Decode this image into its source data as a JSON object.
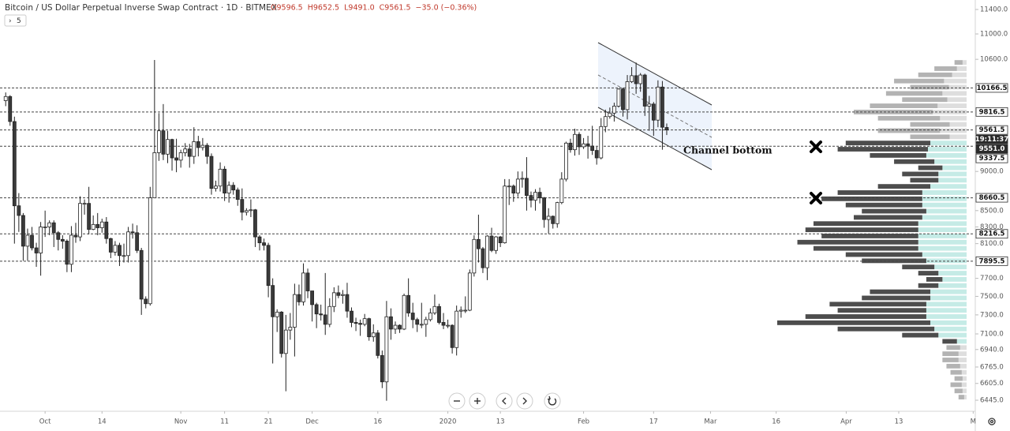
{
  "header": {
    "title": "Bitcoin / US Dollar Perpetual Inverse Swap Contract · 1D · BITMEX",
    "ohlc": [
      "O9596.5",
      "H9652.5",
      "L9491.0",
      "C9561.5",
      "−35.0 (−0.36%)"
    ],
    "indicator_toggle": "5"
  },
  "chart_data": {
    "type": "candlestick",
    "candles": [
      [
        9980,
        10100,
        9900,
        10040
      ],
      [
        10040,
        10060,
        9620,
        9680
      ],
      [
        9680,
        9750,
        8100,
        8560
      ],
      [
        8560,
        8720,
        8240,
        8440
      ],
      [
        8440,
        8470,
        7900,
        8070
      ],
      [
        8070,
        8280,
        7900,
        8200
      ],
      [
        8200,
        8300,
        8020,
        8050
      ],
      [
        8050,
        8110,
        7830,
        7990
      ],
      [
        7990,
        8360,
        7730,
        8300
      ],
      [
        8300,
        8500,
        8180,
        8300
      ],
      [
        8300,
        8380,
        8200,
        8350
      ],
      [
        8350,
        8380,
        8060,
        8230
      ],
      [
        8230,
        8250,
        8020,
        8150
      ],
      [
        8150,
        8200,
        8040,
        8130
      ],
      [
        8130,
        8150,
        7770,
        7860
      ],
      [
        7860,
        8310,
        7770,
        8200
      ],
      [
        8200,
        8350,
        8110,
        8180
      ],
      [
        8180,
        8680,
        8130,
        8590
      ],
      [
        8590,
        8640,
        8450,
        8590
      ],
      [
        8590,
        8800,
        8210,
        8270
      ],
      [
        8270,
        8440,
        8260,
        8330
      ],
      [
        8330,
        8470,
        8200,
        8290
      ],
      [
        8290,
        8400,
        8230,
        8360
      ],
      [
        8360,
        8420,
        8100,
        8160
      ],
      [
        8160,
        8170,
        7930,
        8000
      ],
      [
        8000,
        8130,
        7960,
        8080
      ],
      [
        8080,
        8110,
        7840,
        7960
      ],
      [
        7960,
        8100,
        7880,
        7960
      ],
      [
        7960,
        8300,
        7880,
        8240
      ],
      [
        8240,
        8340,
        8160,
        8230
      ],
      [
        8230,
        8320,
        7990,
        8020
      ],
      [
        8020,
        8050,
        7300,
        7470
      ],
      [
        7470,
        7500,
        7370,
        7420
      ],
      [
        7420,
        8800,
        7400,
        8660
      ],
      [
        8660,
        10590,
        8660,
        9250
      ],
      [
        9250,
        9800,
        9140,
        9550
      ],
      [
        9550,
        9930,
        9150,
        9230
      ],
      [
        9230,
        9550,
        9110,
        9430
      ],
      [
        9430,
        9440,
        9010,
        9180
      ],
      [
        9180,
        9440,
        8990,
        9150
      ],
      [
        9150,
        9290,
        9050,
        9250
      ],
      [
        9250,
        9380,
        9200,
        9300
      ],
      [
        9300,
        9370,
        9050,
        9200
      ],
      [
        9200,
        9600,
        9100,
        9400
      ],
      [
        9400,
        9480,
        9200,
        9320
      ],
      [
        9320,
        9450,
        9280,
        9350
      ],
      [
        9350,
        9380,
        9100,
        9200
      ],
      [
        9200,
        9240,
        8700,
        8780
      ],
      [
        8780,
        8880,
        8740,
        8810
      ],
      [
        8810,
        9120,
        8740,
        9030
      ],
      [
        9030,
        9070,
        8620,
        8720
      ],
      [
        8720,
        8870,
        8600,
        8820
      ],
      [
        8820,
        8860,
        8700,
        8760
      ],
      [
        8760,
        8790,
        8560,
        8640
      ],
      [
        8640,
        8780,
        8380,
        8480
      ],
      [
        8480,
        8530,
        8440,
        8500
      ],
      [
        8500,
        8640,
        8420,
        8510
      ],
      [
        8510,
        8520,
        8060,
        8180
      ],
      [
        8180,
        8200,
        8020,
        8110
      ],
      [
        8110,
        8160,
        8020,
        8080
      ],
      [
        8080,
        8110,
        7490,
        7620
      ],
      [
        7620,
        7700,
        6800,
        7280
      ],
      [
        7280,
        7360,
        7120,
        7330
      ],
      [
        7330,
        7340,
        6860,
        6900
      ],
      [
        6900,
        7300,
        6530,
        7140
      ],
      [
        7140,
        7320,
        7040,
        7170
      ],
      [
        7170,
        7640,
        6870,
        7520
      ],
      [
        7520,
        7630,
        7400,
        7440
      ],
      [
        7440,
        7870,
        7400,
        7760
      ],
      [
        7760,
        7810,
        7480,
        7560
      ],
      [
        7560,
        7560,
        7230,
        7410
      ],
      [
        7410,
        7430,
        7160,
        7310
      ],
      [
        7310,
        7410,
        7240,
        7300
      ],
      [
        7300,
        7760,
        7090,
        7200
      ],
      [
        7200,
        7480,
        7170,
        7390
      ],
      [
        7390,
        7600,
        7330,
        7540
      ],
      [
        7540,
        7620,
        7480,
        7510
      ],
      [
        7510,
        7570,
        7420,
        7520
      ],
      [
        7520,
        7650,
        7270,
        7340
      ],
      [
        7340,
        7380,
        7170,
        7220
      ],
      [
        7220,
        7270,
        7130,
        7210
      ],
      [
        7210,
        7250,
        7080,
        7200
      ],
      [
        7200,
        7310,
        7180,
        7260
      ],
      [
        7260,
        7270,
        7030,
        7070
      ],
      [
        7070,
        7200,
        7020,
        7110
      ],
      [
        7110,
        7140,
        6850,
        6880
      ],
      [
        6880,
        6930,
        6560,
        6620
      ],
      [
        6620,
        7450,
        6440,
        7280
      ],
      [
        7280,
        7370,
        7040,
        7150
      ],
      [
        7150,
        7230,
        7100,
        7190
      ],
      [
        7190,
        7200,
        7110,
        7150
      ],
      [
        7150,
        7530,
        7140,
        7510
      ],
      [
        7510,
        7700,
        7280,
        7320
      ],
      [
        7320,
        7430,
        7160,
        7250
      ],
      [
        7250,
        7270,
        7120,
        7200
      ],
      [
        7200,
        7430,
        7160,
        7200
      ],
      [
        7200,
        7280,
        7070,
        7250
      ],
      [
        7250,
        7370,
        7230,
        7320
      ],
      [
        7320,
        7520,
        7300,
        7390
      ],
      [
        7390,
        7420,
        7200,
        7220
      ],
      [
        7220,
        7320,
        7150,
        7190
      ],
      [
        7190,
        7250,
        7160,
        7190
      ],
      [
        7190,
        7200,
        6900,
        6960
      ],
      [
        6960,
        7400,
        6880,
        7340
      ],
      [
        7340,
        7390,
        7270,
        7350
      ],
      [
        7350,
        7500,
        7320,
        7350
      ],
      [
        7350,
        7800,
        7340,
        7760
      ],
      [
        7760,
        8200,
        7720,
        8150
      ],
      [
        8150,
        8450,
        7880,
        8040
      ],
      [
        8040,
        8060,
        7760,
        7820
      ],
      [
        7820,
        8200,
        7680,
        8190
      ],
      [
        8190,
        8290,
        8000,
        8020
      ],
      [
        8020,
        8190,
        7980,
        8180
      ],
      [
        8180,
        8190,
        8060,
        8110
      ],
      [
        8110,
        8900,
        8100,
        8810
      ],
      [
        8810,
        8900,
        8570,
        8810
      ],
      [
        8810,
        8830,
        8610,
        8720
      ],
      [
        8720,
        9000,
        8670,
        8900
      ],
      [
        8900,
        9000,
        8790,
        8910
      ],
      [
        8910,
        9190,
        8500,
        8690
      ],
      [
        8690,
        8740,
        8540,
        8630
      ],
      [
        8630,
        8770,
        8500,
        8730
      ],
      [
        8730,
        8790,
        8590,
        8660
      ],
      [
        8660,
        8670,
        8290,
        8390
      ],
      [
        8390,
        8530,
        8220,
        8430
      ],
      [
        8430,
        8440,
        8280,
        8340
      ],
      [
        8340,
        8610,
        8290,
        8600
      ],
      [
        8600,
        8990,
        8580,
        8900
      ],
      [
        8900,
        9400,
        8870,
        9380
      ],
      [
        9380,
        9440,
        9250,
        9290
      ],
      [
        9290,
        9580,
        9210,
        9500
      ],
      [
        9500,
        9530,
        9220,
        9330
      ],
      [
        9330,
        9450,
        9300,
        9370
      ],
      [
        9370,
        9480,
        9170,
        9340
      ],
      [
        9340,
        9620,
        9220,
        9280
      ],
      [
        9280,
        9330,
        9090,
        9180
      ],
      [
        9180,
        9730,
        9160,
        9610
      ],
      [
        9610,
        9850,
        9530,
        9750
      ],
      [
        9750,
        9880,
        9720,
        9800
      ],
      [
        9800,
        9950,
        9680,
        9900
      ],
      [
        9900,
        10160,
        9880,
        10150
      ],
      [
        10150,
        10170,
        9750,
        9850
      ],
      [
        9850,
        10360,
        9710,
        10260
      ],
      [
        10260,
        10480,
        10240,
        10350
      ],
      [
        10350,
        10550,
        10080,
        10230
      ],
      [
        10230,
        10390,
        10110,
        10360
      ],
      [
        10360,
        10380,
        9760,
        9900
      ],
      [
        9900,
        10050,
        9550,
        9930
      ],
      [
        9930,
        9960,
        9480,
        9700
      ],
      [
        9700,
        10280,
        9600,
        10180
      ],
      [
        10180,
        10270,
        9290,
        9600
      ],
      [
        9596.5,
        9652.5,
        9491.0,
        9561.5
      ]
    ],
    "up_color": "#ffffff",
    "down_color": "#3a3a3a",
    "xlim": [
      -1.3,
      221.3
    ],
    "xticks": [
      {
        "value": 9,
        "label": "Oct"
      },
      {
        "value": 22,
        "label": "14"
      },
      {
        "value": 40,
        "label": "Nov"
      },
      {
        "value": 50,
        "label": "11"
      },
      {
        "value": 60,
        "label": "21"
      },
      {
        "value": 70,
        "label": "Dec"
      },
      {
        "value": 85,
        "label": "16"
      },
      {
        "value": 101,
        "label": "2020"
      },
      {
        "value": 113,
        "label": "13"
      },
      {
        "value": 132,
        "label": "Feb"
      },
      {
        "value": 148,
        "label": "17"
      },
      {
        "value": 161,
        "label": "Mar"
      },
      {
        "value": 176,
        "label": "16"
      },
      {
        "value": 192,
        "label": "Apr"
      },
      {
        "value": 204,
        "label": "13"
      },
      {
        "value": 221,
        "label": "M"
      }
    ],
    "ylim": [
      6364,
      11559
    ],
    "log_scale": true,
    "grid": false,
    "yticks": [
      {
        "value": 11400,
        "label": "11400.0"
      },
      {
        "value": 11000,
        "label": "11000.0"
      },
      {
        "value": 10600,
        "label": "10600.0"
      },
      {
        "value": 9000,
        "label": "9000.0"
      },
      {
        "value": 8500,
        "label": "8500.0"
      },
      {
        "value": 8300,
        "label": "8300.0"
      },
      {
        "value": 8100,
        "label": "8100.0"
      },
      {
        "value": 7700,
        "label": "7700.0"
      },
      {
        "value": 7500,
        "label": "7500.0"
      },
      {
        "value": 7300,
        "label": "7300.0"
      },
      {
        "value": 7100,
        "label": "7100.0"
      },
      {
        "value": 6940,
        "label": "6940.0"
      },
      {
        "value": 6765,
        "label": "6765.0"
      },
      {
        "value": 6605,
        "label": "6605.0"
      },
      {
        "value": 6445,
        "label": "6445.0"
      }
    ],
    "price_labels": [
      {
        "value": 10166.5,
        "line": true,
        "style": "light"
      },
      {
        "value": 9816.5,
        "line": true,
        "style": "light"
      },
      {
        "value": 9561.5,
        "line": true,
        "style": "light",
        "countdown": "19:11:37"
      },
      {
        "value": 9551.0,
        "label": "9551.0",
        "line": false,
        "style": "dark"
      },
      {
        "value": 9337.5,
        "line": true,
        "style": "light"
      },
      {
        "value": 8660.5,
        "line": true,
        "style": "light"
      },
      {
        "value": 8216.5,
        "line": true,
        "style": "light"
      },
      {
        "value": 7895.5,
        "line": true,
        "style": "light"
      }
    ],
    "annotations": [
      {
        "text": "Channel bottom"
      }
    ],
    "volume_profile": {
      "range": [
        6445,
        10600
      ],
      "value_area": [
        7000,
        9400
      ],
      "rows": [
        [
          10,
          5
        ],
        [
          28,
          12
        ],
        [
          42,
          18
        ],
        [
          62,
          28
        ],
        [
          48,
          22
        ],
        [
          70,
          30
        ],
        [
          56,
          24
        ],
        [
          84,
          36
        ],
        [
          98,
          42
        ],
        [
          77,
          33
        ],
        [
          49,
          21
        ],
        [
          77,
          33
        ],
        [
          49,
          21
        ],
        [
          105,
          45
        ],
        [
          112,
          48
        ],
        [
          70,
          50
        ],
        [
          50,
          40
        ],
        [
          30,
          30
        ],
        [
          45,
          35
        ],
        [
          35,
          35
        ],
        [
          65,
          45
        ],
        [
          105,
          55
        ],
        [
          125,
          55
        ],
        [
          95,
          55
        ],
        [
          80,
          50
        ],
        [
          85,
          55
        ],
        [
          130,
          60
        ],
        [
          140,
          60
        ],
        [
          120,
          60
        ],
        [
          150,
          60
        ],
        [
          130,
          60
        ],
        [
          95,
          55
        ],
        [
          80,
          50
        ],
        [
          40,
          40
        ],
        [
          25,
          35
        ],
        [
          20,
          30
        ],
        [
          25,
          35
        ],
        [
          75,
          45
        ],
        [
          85,
          45
        ],
        [
          120,
          50
        ],
        [
          110,
          50
        ],
        [
          150,
          50
        ],
        [
          190,
          45
        ],
        [
          120,
          40
        ],
        [
          45,
          35
        ],
        [
          18,
          12
        ],
        [
          17,
          8
        ],
        [
          20,
          10
        ],
        [
          20,
          10
        ],
        [
          17,
          8
        ],
        [
          14,
          6
        ],
        [
          10,
          5
        ],
        [
          14,
          6
        ],
        [
          10,
          5
        ],
        [
          7,
          3
        ]
      ]
    }
  }
}
